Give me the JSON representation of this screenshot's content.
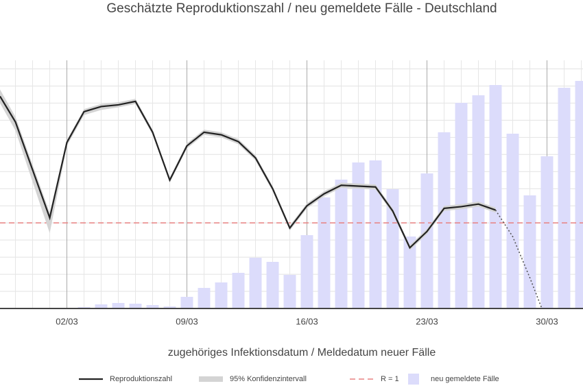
{
  "chart_data": {
    "type": "line_bar",
    "title": "Geschätzte Reproduktionszahl / neu gemeldete Fälle - Deutschland",
    "x_label": "zugehöriges Infektionsdatum / Meldedatum neuer Fälle",
    "xlim": [
      -1.9,
      32.1
    ],
    "xticks": [
      {
        "value": 2,
        "label": "02/03"
      },
      {
        "value": 9,
        "label": "09/03"
      },
      {
        "value": 16,
        "label": "16/03"
      },
      {
        "value": 23,
        "label": "23/03"
      },
      {
        "value": 30,
        "label": "30/03"
      }
    ],
    "xminor": [
      -1,
      0,
      1,
      3,
      4,
      5,
      6,
      7,
      8,
      10,
      11,
      12,
      13,
      14,
      15,
      17,
      18,
      19,
      20,
      21,
      22,
      24,
      25,
      26,
      27,
      28,
      29,
      31,
      32
    ],
    "ylim": [
      0,
      2.9
    ],
    "yticks": [
      0.2,
      0.4,
      0.6,
      0.8,
      1,
      1.2,
      1.4,
      1.6,
      1.8,
      2,
      2.2,
      2.4,
      2.6,
      2.8
    ],
    "y2lim": [
      0,
      362
    ],
    "grid": true,
    "line": {
      "name": "Reproduktionszahl",
      "color": "#222222",
      "x": [
        -1.9,
        -1,
        1,
        2,
        3,
        4,
        5,
        6,
        7,
        8,
        9,
        10,
        11,
        12,
        13,
        14,
        15,
        16,
        17,
        18,
        19,
        20,
        21,
        22,
        23,
        24,
        25,
        26,
        27
      ],
      "values": [
        2.48,
        2.18,
        1.06,
        1.94,
        2.3,
        2.36,
        2.38,
        2.42,
        2.06,
        1.5,
        1.9,
        2.06,
        2.03,
        1.95,
        1.76,
        1.4,
        0.94,
        1.2,
        1.34,
        1.44,
        1.43,
        1.42,
        1.14,
        0.71,
        0.9,
        1.17,
        1.19,
        1.22,
        1.15
      ],
      "lower": [
        2.4,
        2.08,
        0.88,
        1.9,
        2.26,
        2.32,
        2.35,
        2.39,
        2.03,
        1.47,
        1.87,
        2.03,
        2.0,
        1.92,
        1.73,
        1.37,
        0.91,
        1.17,
        1.31,
        1.41,
        1.4,
        1.39,
        1.11,
        0.68,
        0.87,
        1.14,
        1.16,
        1.19,
        1.12
      ],
      "upper": [
        2.56,
        2.24,
        1.12,
        1.97,
        2.33,
        2.39,
        2.41,
        2.45,
        2.09,
        1.53,
        1.93,
        2.09,
        2.06,
        1.98,
        1.79,
        1.43,
        0.97,
        1.23,
        1.37,
        1.47,
        1.46,
        1.45,
        1.17,
        0.74,
        0.93,
        1.2,
        1.22,
        1.25,
        1.18
      ]
    },
    "band_name": "95% Konfidenzintervall",
    "band_color": "#d4d4d4",
    "forecast": {
      "color": "#555555",
      "x": [
        27,
        28,
        29,
        29.7
      ],
      "values": [
        1.15,
        0.84,
        0.36,
        0
      ]
    },
    "reference": {
      "name": "R = 1",
      "value": 1,
      "color": "#e88080"
    },
    "bars": {
      "name": "neu gemeldete Fälle",
      "color": "#dcdcfb",
      "axis": "y2",
      "x": [
        2,
        3,
        4,
        5,
        6,
        7,
        8,
        9,
        10,
        11,
        12,
        13,
        14,
        15,
        16,
        17,
        18,
        19,
        20,
        21,
        22,
        23,
        24,
        25,
        26,
        27,
        28,
        29,
        30,
        31,
        32
      ],
      "values": [
        1,
        2,
        6,
        8,
        7,
        5,
        3,
        17,
        30,
        38,
        52,
        74,
        68,
        49,
        107,
        162,
        188,
        213,
        216,
        174,
        105,
        197,
        257,
        300,
        311,
        326,
        255,
        165,
        222,
        322,
        332
      ]
    }
  }
}
